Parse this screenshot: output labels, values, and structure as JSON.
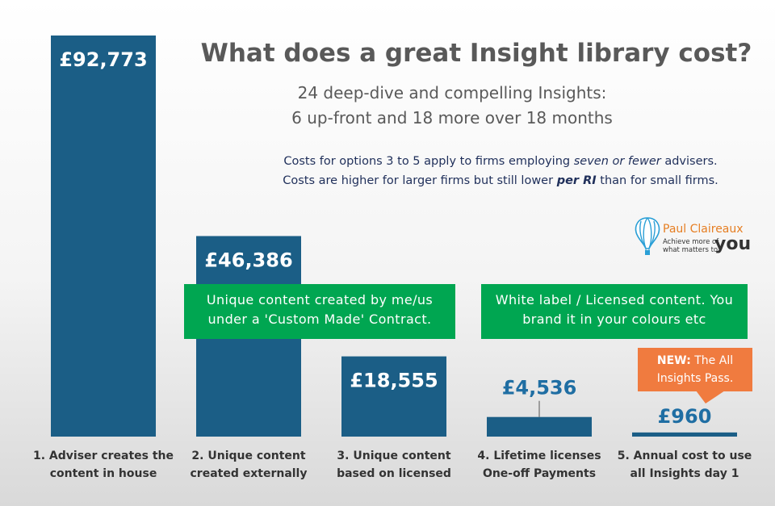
{
  "header": {
    "title": "What does a great Insight library cost?",
    "subtitle_line1": "24 deep-dive and compelling Insights:",
    "subtitle_line2": "6 up-front and 18 more over 18 months"
  },
  "note": {
    "line1_a": "Costs for options 3 to 5 apply to firms employing ",
    "line1_em": "seven or fewer",
    "line1_b": " advisers.",
    "line2_a": "Costs are higher for larger firms but still lower ",
    "line2_em": "per RI",
    "line2_b": " than for small firms."
  },
  "logo": {
    "name": "Paul Claireaux",
    "tagline": "Achieve more of what matters to",
    "you": "you"
  },
  "callouts": {
    "custom": "Unique content created by me/us under a 'Custom Made' Contract.",
    "white_label": "White label / Licensed content. You brand it in your colours etc",
    "promo_bold": "NEW:",
    "promo_rest": " The All Insights Pass."
  },
  "colors": {
    "bar": "#1b5e86",
    "value_inside": "#ffffff",
    "value_outside": "#1f6ea3",
    "green": "#00a651",
    "orange": "#f07b3f"
  },
  "chart_data": {
    "type": "bar",
    "currency": "£",
    "categories": [
      [
        "1. Adviser creates the",
        "content in house"
      ],
      [
        "2. Unique content",
        "created externally"
      ],
      [
        "3. Unique content",
        "based on licensed"
      ],
      [
        "4. Lifetime licenses",
        "One-off Payments"
      ],
      [
        "5. Annual cost to use",
        "all Insights day 1"
      ]
    ],
    "values": [
      92773,
      46386,
      18555,
      4536,
      960
    ],
    "value_labels": [
      "£92,773",
      "£46,386",
      "£18,555",
      "£4,536",
      "£960"
    ],
    "ylim": [
      0,
      92773
    ],
    "grid": false,
    "legend": "none"
  }
}
